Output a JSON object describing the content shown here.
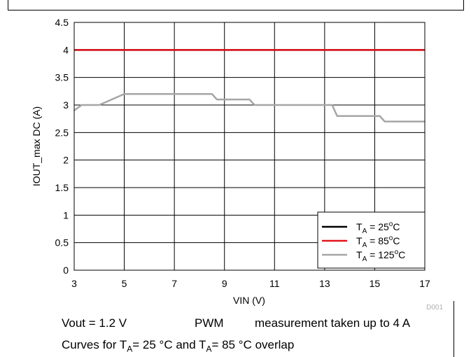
{
  "chart_data": {
    "type": "line",
    "xlabel": "VIN (V)",
    "ylabel": "IOUT_max DC (A)",
    "xlim": [
      3,
      17
    ],
    "ylim": [
      0,
      4.5
    ],
    "xticks": [
      3,
      5,
      7,
      9,
      11,
      13,
      15,
      17
    ],
    "yticks": [
      0,
      0.5,
      1,
      1.5,
      2,
      2.5,
      3,
      3.5,
      4,
      4.5
    ],
    "grid": true,
    "legend_position": "bottom-right",
    "series": [
      {
        "name_prefix": "T",
        "name_sub": "A",
        "name_suffix": " = 25",
        "name_sup": "o",
        "name_unit": "C",
        "color": "#000000",
        "x": [
          3,
          17
        ],
        "y": [
          4,
          4
        ]
      },
      {
        "name_prefix": "T",
        "name_sub": "A",
        "name_suffix": " = 85",
        "name_sup": "o",
        "name_unit": "C",
        "color": "#e0141c",
        "x": [
          3,
          17
        ],
        "y": [
          4,
          4
        ]
      },
      {
        "name_prefix": "T",
        "name_sub": "A",
        "name_suffix": " = 125",
        "name_sup": "o",
        "name_unit": "C",
        "color": "#a6a6a6",
        "x": [
          3,
          3.3,
          4,
          5,
          8.5,
          8.7,
          10,
          10.2,
          13.3,
          13.5,
          15.2,
          15.4,
          17
        ],
        "y": [
          2.9,
          3.0,
          3.0,
          3.2,
          3.2,
          3.1,
          3.1,
          3.0,
          3.0,
          2.8,
          2.8,
          2.7,
          2.7
        ]
      }
    ],
    "annotation": "D001"
  },
  "caption": {
    "line1_part1": "Vout = 1.2 V",
    "line1_part2": "PWM",
    "line1_part3": "measurement taken up to 4 A",
    "line2_a": "Curves for T",
    "line2_sub1": "A",
    "line2_b": "= 25 °C and T",
    "line2_sub2": "A",
    "line2_c": "= 85 °C overlap"
  }
}
